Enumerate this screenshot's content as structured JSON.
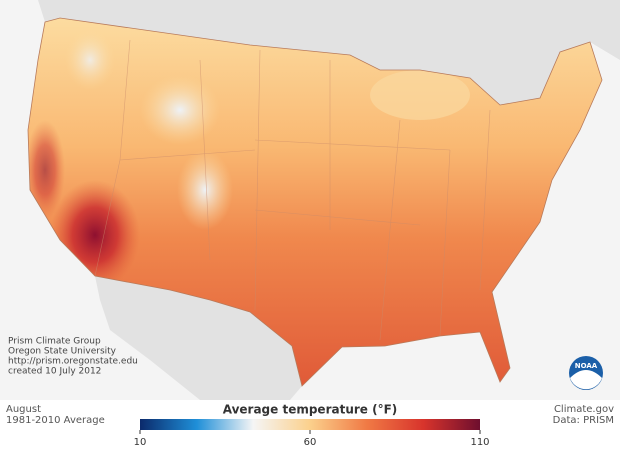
{
  "credits": {
    "lines": [
      "Prism Climate Group",
      "Oregon State University",
      "http://prism.oregonstate.edu",
      "created 10 July 2012"
    ]
  },
  "period": {
    "month": "August",
    "normal": "1981-2010 Average"
  },
  "source": {
    "site": "Climate.gov",
    "data": "Data: PRISM"
  },
  "logo": {
    "text": "NOAA"
  },
  "legend": {
    "title": "Average temperature (°F)",
    "range": [
      10,
      110
    ],
    "ticks": [
      10,
      60,
      110
    ],
    "colors": [
      "#0b2a6b",
      "#1f8fd8",
      "#f5f5f5",
      "#fbd08c",
      "#f07a45",
      "#d8342c",
      "#6e0e2e"
    ]
  }
}
